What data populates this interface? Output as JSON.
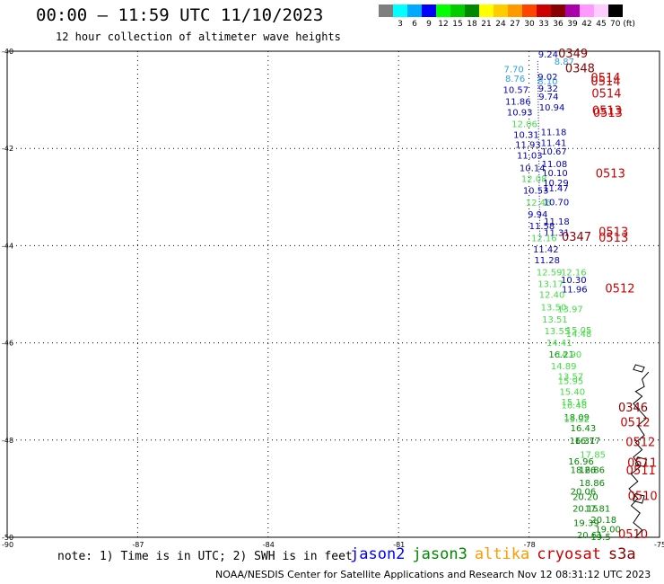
{
  "header": {
    "title": "00:00 – 11:59 UTC 11/10/2023",
    "subtitle": "12 hour collection of altimeter wave heights"
  },
  "color_scale": {
    "colors": [
      "#7f7f7f",
      "#00ffff",
      "#00aaff",
      "#0000ff",
      "#00ff00",
      "#00cc00",
      "#008800",
      "#ffff00",
      "#ffcc00",
      "#ff9900",
      "#ff4400",
      "#cc0000",
      "#880000",
      "#aa00aa",
      "#ff99ff",
      "#ffccff",
      "#000000"
    ],
    "labels": [
      "",
      "3",
      "6",
      "9",
      "12",
      "15",
      "18",
      "21",
      "24",
      "27",
      "30",
      "33",
      "36",
      "39",
      "42",
      "45",
      "70 (ft)"
    ]
  },
  "map": {
    "lat_labels": [
      "-40",
      "-42",
      "-44",
      "-46",
      "-48",
      "-50"
    ],
    "lon_labels": [
      "-90",
      "-87",
      "-84",
      "-81",
      "-78",
      "-75"
    ],
    "observations": [
      {
        "t": "9.24",
        "lon": -77.79,
        "lat": -40.13,
        "c": "#0000bb"
      },
      {
        "t": "8.87",
        "lon": -77.42,
        "lat": -40.28,
        "c": "#2f9ee8"
      },
      {
        "t": "7.70",
        "lon": -78.58,
        "lat": -40.43,
        "c": "#2f9ee8"
      },
      {
        "t": "8.76",
        "lon": -78.55,
        "lat": -40.63,
        "c": "#2f9ee8"
      },
      {
        "t": "9.02",
        "lon": -77.8,
        "lat": -40.59,
        "c": "#0000bb"
      },
      {
        "t": "8.10",
        "lon": -77.8,
        "lat": -40.68,
        "c": "#2f9ee8"
      },
      {
        "t": "9.32",
        "lon": -77.79,
        "lat": -40.83,
        "c": "#0000bb"
      },
      {
        "t": "10.57",
        "lon": -78.6,
        "lat": -40.86,
        "c": "#0000bb"
      },
      {
        "t": "9.74",
        "lon": -77.78,
        "lat": -41.0,
        "c": "#0000bb"
      },
      {
        "t": "11.86",
        "lon": -78.55,
        "lat": -41.1,
        "c": "#0000bb"
      },
      {
        "t": "10.93",
        "lon": -78.51,
        "lat": -41.32,
        "c": "#0000bb"
      },
      {
        "t": "10.94",
        "lon": -77.77,
        "lat": -41.22,
        "c": "#0000bb"
      },
      {
        "t": "12.06",
        "lon": -78.4,
        "lat": -41.56,
        "c": "#44dd44"
      },
      {
        "t": "10.31",
        "lon": -78.36,
        "lat": -41.78,
        "c": "#0000bb"
      },
      {
        "t": "11.18",
        "lon": -77.73,
        "lat": -41.73,
        "c": "#0000bb"
      },
      {
        "t": "11.93",
        "lon": -78.32,
        "lat": -41.99,
        "c": "#0000bb"
      },
      {
        "t": "11.41",
        "lon": -77.73,
        "lat": -41.95,
        "c": "#0000bb"
      },
      {
        "t": "10.67",
        "lon": -77.72,
        "lat": -42.13,
        "c": "#0000bb"
      },
      {
        "t": "11.03",
        "lon": -78.28,
        "lat": -42.21,
        "c": "#0000bb"
      },
      {
        "t": "11.08",
        "lon": -77.71,
        "lat": -42.38,
        "c": "#0000bb"
      },
      {
        "t": "10.14",
        "lon": -78.22,
        "lat": -42.47,
        "c": "#0000bb"
      },
      {
        "t": "10.10",
        "lon": -77.7,
        "lat": -42.57,
        "c": "#0000bb"
      },
      {
        "t": "12.08",
        "lon": -78.18,
        "lat": -42.69,
        "c": "#44dd44"
      },
      {
        "t": "10.29",
        "lon": -77.68,
        "lat": -42.77,
        "c": "#0000bb"
      },
      {
        "t": "11.47",
        "lon": -77.68,
        "lat": -42.88,
        "c": "#0000bb"
      },
      {
        "t": "10.53",
        "lon": -78.14,
        "lat": -42.93,
        "c": "#0000bb"
      },
      {
        "t": "12.46",
        "lon": -78.08,
        "lat": -43.18,
        "c": "#44dd44"
      },
      {
        "t": "10.70",
        "lon": -77.67,
        "lat": -43.17,
        "c": "#0000bb"
      },
      {
        "t": "9.94",
        "lon": -78.03,
        "lat": -43.42,
        "c": "#0000bb"
      },
      {
        "t": "11.18",
        "lon": -77.66,
        "lat": -43.57,
        "c": "#0000bb"
      },
      {
        "t": "11.58",
        "lon": -78.0,
        "lat": -43.66,
        "c": "#0000bb"
      },
      {
        "t": "11.31",
        "lon": -77.66,
        "lat": -43.8,
        "c": "#0000bb"
      },
      {
        "t": "12.16",
        "lon": -77.95,
        "lat": -43.91,
        "c": "#44dd44"
      },
      {
        "t": "11.42",
        "lon": -77.91,
        "lat": -44.14,
        "c": "#0000bb"
      },
      {
        "t": "11.28",
        "lon": -77.88,
        "lat": -44.36,
        "c": "#0000bb"
      },
      {
        "t": "12.59",
        "lon": -77.83,
        "lat": -44.61,
        "c": "#44dd44"
      },
      {
        "t": "12.16",
        "lon": -77.27,
        "lat": -44.61,
        "c": "#44dd44"
      },
      {
        "t": "10.30",
        "lon": -77.27,
        "lat": -44.77,
        "c": "#0000bb"
      },
      {
        "t": "13.17",
        "lon": -77.8,
        "lat": -44.85,
        "c": "#44dd44"
      },
      {
        "t": "11.96",
        "lon": -77.25,
        "lat": -44.96,
        "c": "#0000bb"
      },
      {
        "t": "12.40",
        "lon": -77.77,
        "lat": -45.07,
        "c": "#44dd44"
      },
      {
        "t": "13.50",
        "lon": -77.73,
        "lat": -45.33,
        "c": "#44dd44"
      },
      {
        "t": "13.97",
        "lon": -77.35,
        "lat": -45.37,
        "c": "#44dd44"
      },
      {
        "t": "13.51",
        "lon": -77.7,
        "lat": -45.58,
        "c": "#44dd44"
      },
      {
        "t": "13.55",
        "lon": -77.65,
        "lat": -45.82,
        "c": "#44dd44"
      },
      {
        "t": "15.05",
        "lon": -77.15,
        "lat": -45.8,
        "c": "#44dd44"
      },
      {
        "t": "14.48",
        "lon": -77.15,
        "lat": -45.88,
        "c": "#44dd44"
      },
      {
        "t": "14.41",
        "lon": -77.6,
        "lat": -46.06,
        "c": "#44dd44"
      },
      {
        "t": "16.21",
        "lon": -77.55,
        "lat": -46.3,
        "c": "#008800"
      },
      {
        "t": "14.90",
        "lon": -77.38,
        "lat": -46.3,
        "c": "#44dd44"
      },
      {
        "t": "14.89",
        "lon": -77.5,
        "lat": -46.54,
        "c": "#44dd44"
      },
      {
        "t": "13.57",
        "lon": -77.34,
        "lat": -46.76,
        "c": "#44dd44"
      },
      {
        "t": "15.95",
        "lon": -77.34,
        "lat": -46.85,
        "c": "#44dd44"
      },
      {
        "t": "15.40",
        "lon": -77.3,
        "lat": -47.07,
        "c": "#44dd44"
      },
      {
        "t": "16.48",
        "lon": -77.26,
        "lat": -47.35,
        "c": "#44dd44"
      },
      {
        "t": "15.16",
        "lon": -77.26,
        "lat": -47.28,
        "c": "#44dd44"
      },
      {
        "t": "18.09",
        "lon": -77.2,
        "lat": -47.6,
        "c": "#008800"
      },
      {
        "t": "15.32",
        "lon": -77.2,
        "lat": -47.63,
        "c": "#44dd44"
      },
      {
        "t": "16.43",
        "lon": -77.05,
        "lat": -47.82,
        "c": "#008800"
      },
      {
        "t": "16.31",
        "lon": -77.07,
        "lat": -48.08,
        "c": "#008800"
      },
      {
        "t": "16.77",
        "lon": -76.95,
        "lat": -48.08,
        "c": "#008800"
      },
      {
        "t": "17.85",
        "lon": -76.83,
        "lat": -48.36,
        "c": "#44dd44"
      },
      {
        "t": "16.96",
        "lon": -77.1,
        "lat": -48.5,
        "c": "#008800"
      },
      {
        "t": "18.26",
        "lon": -77.05,
        "lat": -48.68,
        "c": "#008800"
      },
      {
        "t": "16.86",
        "lon": -76.85,
        "lat": -48.68,
        "c": "#008800"
      },
      {
        "t": "18.86",
        "lon": -76.85,
        "lat": -48.95,
        "c": "#008800"
      },
      {
        "t": "20.06",
        "lon": -77.05,
        "lat": -49.12,
        "c": "#008800"
      },
      {
        "t": "20.20",
        "lon": -77.0,
        "lat": -49.23,
        "c": "#008800"
      },
      {
        "t": "20.15",
        "lon": -77.0,
        "lat": -49.47,
        "c": "#008800"
      },
      {
        "t": "17.81",
        "lon": -76.72,
        "lat": -49.47,
        "c": "#008800"
      },
      {
        "t": "20.18",
        "lon": -76.58,
        "lat": -49.7,
        "c": "#008800"
      },
      {
        "t": "19.39",
        "lon": -76.98,
        "lat": -49.77,
        "c": "#008800"
      },
      {
        "t": "19.00",
        "lon": -76.48,
        "lat": -49.9,
        "c": "#008800"
      },
      {
        "t": "20.61",
        "lon": -76.9,
        "lat": -50.02,
        "c": "#008800"
      },
      {
        "t": "19.5",
        "lon": -76.58,
        "lat": -50.06,
        "c": "#008800"
      }
    ],
    "passes": [
      {
        "t": "0349",
        "lon": -77.33,
        "lat": -40.13,
        "c": "#880000"
      },
      {
        "t": "0348",
        "lon": -77.17,
        "lat": -40.43,
        "c": "#880000"
      },
      {
        "t": "0514",
        "lon": -76.58,
        "lat": -40.63,
        "c": "#cc0000"
      },
      {
        "t": "0514",
        "lon": -76.58,
        "lat": -40.7,
        "c": "#cc0000"
      },
      {
        "t": "0514",
        "lon": -76.56,
        "lat": -40.95,
        "c": "#cc0000"
      },
      {
        "t": "0513",
        "lon": -76.55,
        "lat": -41.3,
        "c": "#cc0000"
      },
      {
        "t": "0513",
        "lon": -76.53,
        "lat": -41.35,
        "c": "#cc0000"
      },
      {
        "t": "0513",
        "lon": -76.47,
        "lat": -42.6,
        "c": "#cc0000"
      },
      {
        "t": "0513",
        "lon": -76.4,
        "lat": -43.8,
        "c": "#cc0000"
      },
      {
        "t": "0347",
        "lon": -77.25,
        "lat": -43.9,
        "c": "#880000"
      },
      {
        "t": "0513",
        "lon": -76.4,
        "lat": -43.92,
        "c": "#cc0000"
      },
      {
        "t": "0512",
        "lon": -76.25,
        "lat": -44.96,
        "c": "#cc0000"
      },
      {
        "t": "0346",
        "lon": -75.95,
        "lat": -47.41,
        "c": "#880000"
      },
      {
        "t": "0512",
        "lon": -75.9,
        "lat": -47.72,
        "c": "#cc0000"
      },
      {
        "t": "0512",
        "lon": -75.78,
        "lat": -48.12,
        "c": "#cc0000"
      },
      {
        "t": "0511",
        "lon": -75.74,
        "lat": -48.55,
        "c": "#cc0000"
      },
      {
        "t": "0511",
        "lon": -75.77,
        "lat": -48.71,
        "c": "#cc0000"
      },
      {
        "t": "0510",
        "lon": -75.73,
        "lat": -49.23,
        "c": "#cc0000"
      },
      {
        "t": "0510",
        "lon": -75.95,
        "lat": -50.02,
        "c": "#cc0000"
      }
    ]
  },
  "note": "note: 1) Time is in UTC; 2) SWH is in feet",
  "legend": [
    {
      "label": "jason2",
      "color": "#0000ff"
    },
    {
      "label": "jason3",
      "color": "#008800"
    },
    {
      "label": "altika",
      "color": "#ff9900"
    },
    {
      "label": "cryosat",
      "color": "#cc0000"
    },
    {
      "label": "s3a",
      "color": "#880000"
    }
  ],
  "credit": "NOAA/NESDIS Center for Satellite Applications and Research   Nov 12 08:31:12 UTC 2023"
}
